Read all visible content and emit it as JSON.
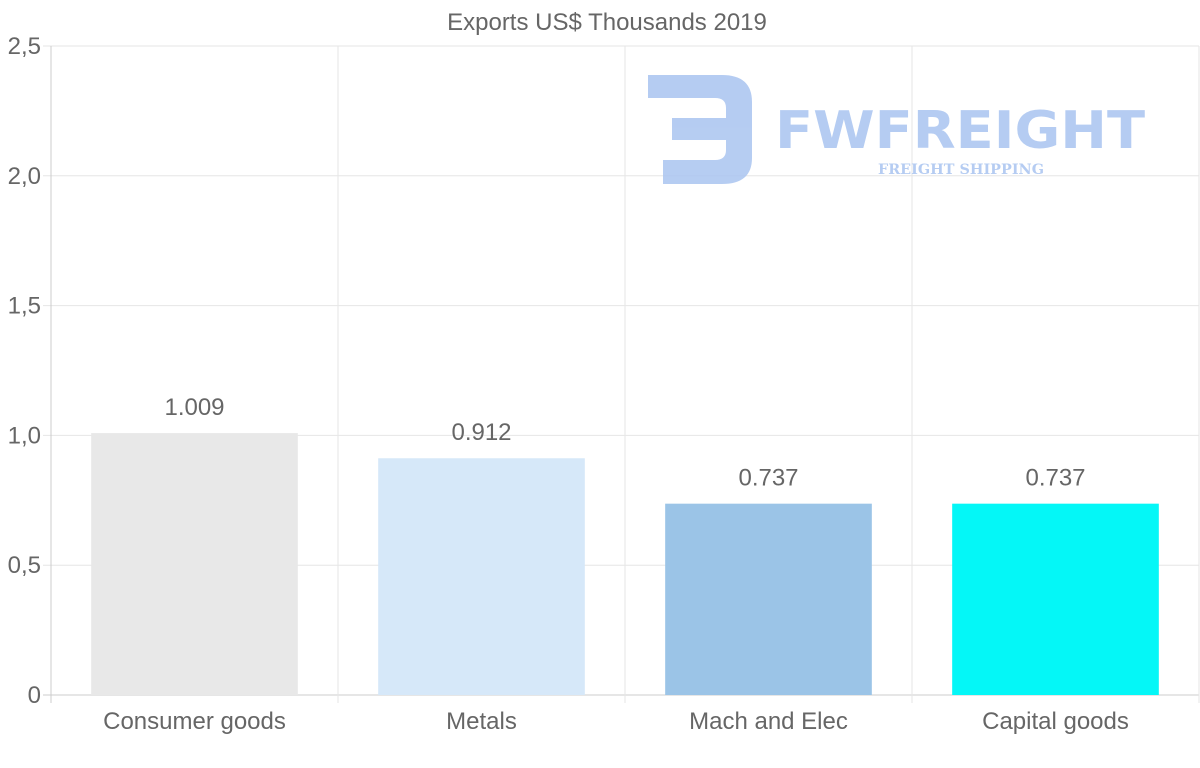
{
  "chart_data": {
    "type": "bar",
    "title": "Exports US$ Thousands 2019",
    "xlabel": "",
    "ylabel": "",
    "categories": [
      "Consumer goods",
      "Metals",
      "Mach and Elec",
      "Capital goods"
    ],
    "values": [
      1.009,
      0.912,
      0.737,
      0.737
    ],
    "value_labels": [
      "1.009",
      "0.912",
      "0.737",
      "0.737"
    ],
    "colors": [
      "#e8e8e8",
      "#d6e8f9",
      "#9bc4e7",
      "#04f7f7"
    ],
    "ylim": [
      0,
      2.5
    ],
    "yticks": [
      0,
      0.5,
      1.0,
      1.5,
      2.0,
      2.5
    ],
    "ytick_labels": [
      "0",
      "0,5",
      "1,0",
      "1,5",
      "2,0",
      "2,5"
    ],
    "grid": true,
    "legend": "none"
  },
  "watermark": {
    "name": "FWFREIGHT",
    "tagline": "FREIGHT SHIPPING",
    "color": "#a9c4f0"
  }
}
